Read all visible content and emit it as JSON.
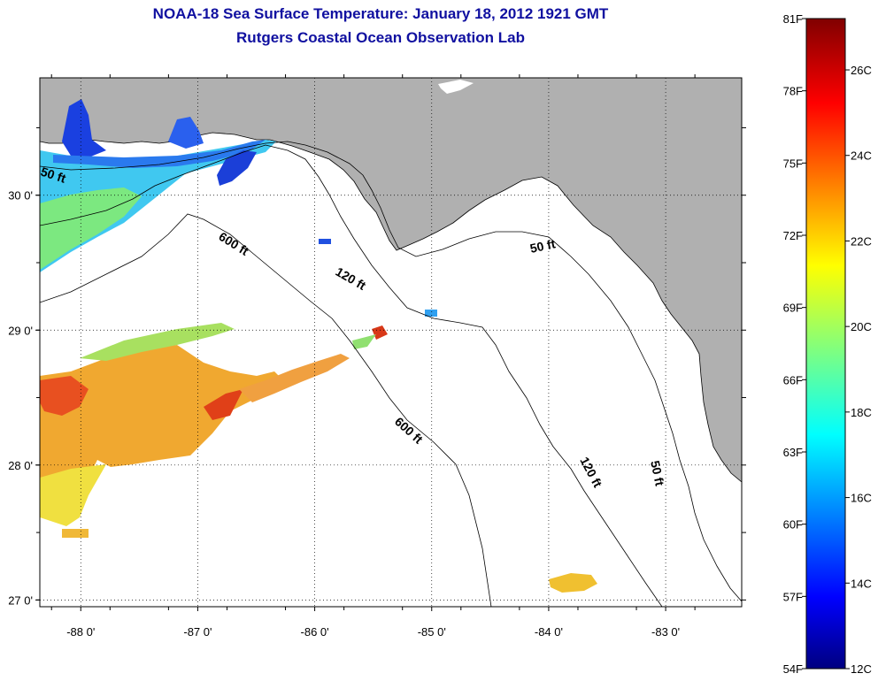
{
  "title_line1": "NOAA-18 Sea Surface Temperature:  January 18, 2012 1921 GMT",
  "title_line2": "Rutgers Coastal Ocean Observation Lab",
  "colors": {
    "land": "#b0b0b0",
    "water_nodata": "#ffffff",
    "title": "#1010a0"
  },
  "map": {
    "lon_range": [
      -88.35,
      -82.35
    ],
    "lat_range": [
      26.95,
      30.87
    ],
    "lon_ticks": [
      {
        "value": -88,
        "label": "-88 0'"
      },
      {
        "value": -87,
        "label": "-87 0'"
      },
      {
        "value": -86,
        "label": "-86 0'"
      },
      {
        "value": -85,
        "label": "-85 0'"
      },
      {
        "value": -84,
        "label": "-84 0'"
      },
      {
        "value": -83,
        "label": "-83 0'"
      }
    ],
    "lat_ticks": [
      {
        "value": 30,
        "label": "30 0'"
      },
      {
        "value": 29,
        "label": "29 0'"
      },
      {
        "value": 28,
        "label": "28 0'"
      },
      {
        "value": 27,
        "label": "27 0'"
      }
    ],
    "contour_labels": [
      {
        "text": "50 ft"
      },
      {
        "text": "600 ft"
      },
      {
        "text": "120 ft"
      },
      {
        "text": "50 ft"
      },
      {
        "text": "600 ft"
      },
      {
        "text": "120 ft"
      },
      {
        "text": "50 ft"
      }
    ]
  },
  "colorbar": {
    "range_c": [
      12,
      27.2
    ],
    "fahrenheit_labels": [
      "81F",
      "78F",
      "75F",
      "72F",
      "69F",
      "66F",
      "63F",
      "60F",
      "57F",
      "54F"
    ],
    "celsius_labels": [
      "26C",
      "24C",
      "22C",
      "20C",
      "18C",
      "16C",
      "14C",
      "12C"
    ]
  }
}
